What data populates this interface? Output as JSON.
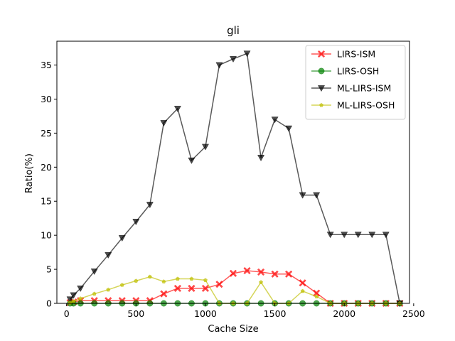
{
  "chart_data": {
    "type": "line",
    "title": "gli",
    "xlabel": "Cache Size",
    "ylabel": "Ratio(%)",
    "xlim": [
      -70,
      2470
    ],
    "ylim": [
      0,
      38.5
    ],
    "xticks": [
      0,
      500,
      1000,
      1500,
      2000,
      2500
    ],
    "yticks": [
      0,
      5,
      10,
      15,
      20,
      25,
      30,
      35
    ],
    "grid": false,
    "legend_position": "top-right",
    "x": [
      25,
      50,
      100,
      200,
      300,
      400,
      500,
      600,
      700,
      800,
      900,
      1000,
      1100,
      1200,
      1300,
      1400,
      1500,
      1600,
      1700,
      1800,
      1900,
      2000,
      2100,
      2200,
      2300,
      2400
    ],
    "series": [
      {
        "name": "LIRS-ISM",
        "color": "#ff0000",
        "marker": "X",
        "values": [
          0.1,
          0.2,
          0.4,
          0.4,
          0.4,
          0.4,
          0.4,
          0.4,
          1.4,
          2.2,
          2.2,
          2.2,
          2.8,
          4.4,
          4.8,
          4.6,
          4.3,
          4.3,
          3.0,
          1.5,
          0.0,
          0.0,
          0.0,
          0.0,
          0.0,
          0.0
        ]
      },
      {
        "name": "LIRS-OSH",
        "color": "#008000",
        "marker": "o",
        "values": [
          0.0,
          0.0,
          0.0,
          0.0,
          0.0,
          0.0,
          0.0,
          0.0,
          0.0,
          0.0,
          0.0,
          0.0,
          0.0,
          0.0,
          0.0,
          0.0,
          0.0,
          0.0,
          0.0,
          0.0,
          0.0,
          0.0,
          0.0,
          0.0,
          0.0,
          0.0
        ]
      },
      {
        "name": "ML-LIRS-ISM",
        "color": "#000000",
        "marker": "v",
        "values": [
          0.6,
          1.2,
          2.2,
          4.7,
          7.1,
          9.6,
          12.0,
          14.5,
          26.5,
          28.6,
          21.0,
          23.0,
          35.0,
          35.9,
          36.7,
          21.4,
          27.0,
          25.7,
          15.9,
          15.9,
          10.1,
          10.1,
          10.1,
          10.1,
          10.1,
          0.0
        ]
      },
      {
        "name": "ML-LIRS-OSH",
        "color": "#bfbf00",
        "marker": "p",
        "values": [
          0.1,
          0.3,
          0.7,
          1.4,
          2.0,
          2.7,
          3.3,
          3.9,
          3.2,
          3.6,
          3.6,
          3.4,
          0.0,
          0.0,
          0.0,
          3.1,
          0.0,
          0.0,
          1.8,
          1.0,
          0.0,
          0.0,
          0.0,
          0.0,
          0.0,
          0.0
        ]
      }
    ]
  }
}
